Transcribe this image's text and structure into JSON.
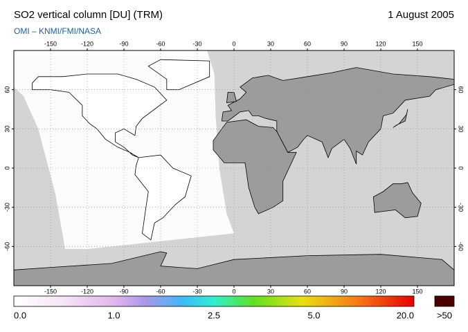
{
  "title": "SO2 vertical column [DU] (TRM)",
  "date": "1 August 2005",
  "credit": "OMI  –  KNMI/FMI/NASA",
  "map": {
    "xlim": [
      -180,
      180
    ],
    "ylim": [
      -90,
      90
    ],
    "lon_ticks": [
      -150,
      -120,
      -90,
      -60,
      -30,
      0,
      30,
      60,
      90,
      120,
      150
    ],
    "lat_ticks": [
      60,
      30,
      0,
      -30,
      -60
    ],
    "grid": true
  },
  "colorbar": {
    "labels": [
      "0.0",
      "1.0",
      "2.5",
      "5.0",
      "20.0"
    ],
    "overflow_label": ">50",
    "overflow_color": "#4a0000"
  }
}
